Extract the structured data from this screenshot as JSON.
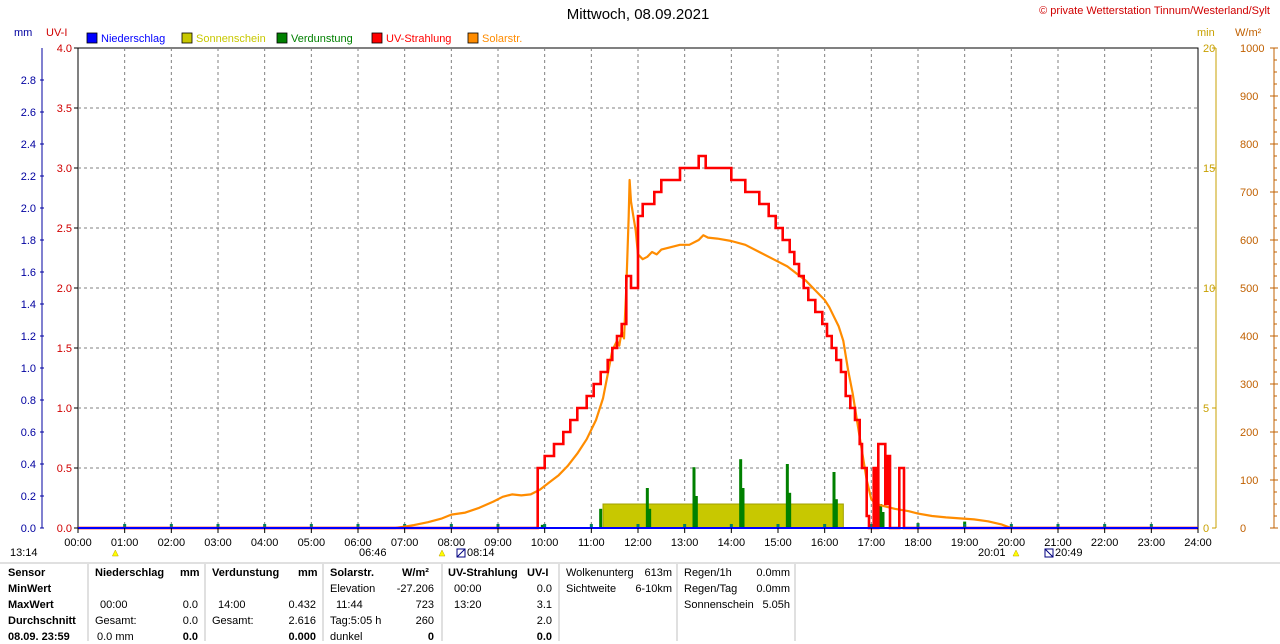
{
  "title": "Mittwoch, 08.09.2021",
  "copyright": "© private Wetterstation Tinnum/Westerland/Sylt",
  "colors": {
    "niederschlag": "#0000ff",
    "sonnenschein": "#c8c800",
    "verdunstung": "#008000",
    "uv": "#ff0000",
    "solar": "#ff8c00",
    "left_axis_mm": "#0000a0",
    "left_axis_uv": "#d00000",
    "right_axis_min": "#c8a000",
    "right_axis_wm2": "#c06000"
  },
  "chart_data": {
    "type": "line",
    "x_unit": "time of day (h)",
    "xlim": [
      0,
      24
    ],
    "x_tick_labels": [
      "00:00",
      "01:00",
      "02:00",
      "03:00",
      "04:00",
      "05:00",
      "06:00",
      "07:00",
      "08:00",
      "09:00",
      "10:00",
      "11:00",
      "12:00",
      "13:00",
      "14:00",
      "15:00",
      "16:00",
      "17:00",
      "18:00",
      "19:00",
      "20:00",
      "21:00",
      "22:00",
      "23:00",
      "24:00"
    ],
    "axes": {
      "mm": {
        "label": "mm",
        "ylim": [
          0,
          3.0
        ],
        "ticks": [
          "0.0",
          "0.2",
          "0.4",
          "0.6",
          "0.8",
          "1.0",
          "1.2",
          "1.4",
          "1.6",
          "1.8",
          "2.0",
          "2.2",
          "2.4",
          "2.6",
          "2.8"
        ]
      },
      "uv": {
        "label": "UV-I",
        "ylim": [
          0,
          4.0
        ],
        "ticks": [
          "0.0",
          "0.5",
          "1.0",
          "1.5",
          "2.0",
          "2.5",
          "3.0",
          "3.5",
          "4.0"
        ]
      },
      "min": {
        "label": "min",
        "ylim": [
          0,
          20
        ],
        "ticks": [
          "0",
          "5",
          "10",
          "15",
          "20"
        ]
      },
      "wm2": {
        "label": "W/m²",
        "ylim": [
          0,
          1000
        ],
        "ticks": [
          "0",
          "100",
          "200",
          "300",
          "400",
          "500",
          "600",
          "700",
          "800",
          "900",
          "1000"
        ]
      }
    },
    "legend": [
      "Niederschlag",
      "Sonnenschein",
      "Verdunstung",
      "UV-Strahlung",
      "Solarstr."
    ],
    "legend_placement": "top-left",
    "grid": true,
    "series": [
      {
        "name": "UV-Strahlung",
        "axis": "uv",
        "step": true,
        "points": [
          [
            0,
            0
          ],
          [
            9.85,
            0
          ],
          [
            9.85,
            0.5
          ],
          [
            10.0,
            0.5
          ],
          [
            10.0,
            0.6
          ],
          [
            10.2,
            0.6
          ],
          [
            10.2,
            0.7
          ],
          [
            10.4,
            0.7
          ],
          [
            10.4,
            0.8
          ],
          [
            10.55,
            0.8
          ],
          [
            10.55,
            0.9
          ],
          [
            10.7,
            0.9
          ],
          [
            10.7,
            1.0
          ],
          [
            10.9,
            1.0
          ],
          [
            10.9,
            1.1
          ],
          [
            11.05,
            1.1
          ],
          [
            11.05,
            1.2
          ],
          [
            11.2,
            1.2
          ],
          [
            11.2,
            1.3
          ],
          [
            11.35,
            1.3
          ],
          [
            11.35,
            1.4
          ],
          [
            11.45,
            1.4
          ],
          [
            11.45,
            1.5
          ],
          [
            11.55,
            1.5
          ],
          [
            11.55,
            1.6
          ],
          [
            11.65,
            1.6
          ],
          [
            11.65,
            1.7
          ],
          [
            11.75,
            1.7
          ],
          [
            11.75,
            2.1
          ],
          [
            11.85,
            2.1
          ],
          [
            11.85,
            2.0
          ],
          [
            12.0,
            2.0
          ],
          [
            12.0,
            2.6
          ],
          [
            12.1,
            2.6
          ],
          [
            12.1,
            2.7
          ],
          [
            12.35,
            2.7
          ],
          [
            12.35,
            2.8
          ],
          [
            12.5,
            2.8
          ],
          [
            12.5,
            2.9
          ],
          [
            12.9,
            2.9
          ],
          [
            12.9,
            3.0
          ],
          [
            13.3,
            3.0
          ],
          [
            13.3,
            3.1
          ],
          [
            13.45,
            3.1
          ],
          [
            13.45,
            3.0
          ],
          [
            14.0,
            3.0
          ],
          [
            14.0,
            2.9
          ],
          [
            14.3,
            2.9
          ],
          [
            14.3,
            2.8
          ],
          [
            14.6,
            2.8
          ],
          [
            14.6,
            2.7
          ],
          [
            14.8,
            2.7
          ],
          [
            14.8,
            2.6
          ],
          [
            14.95,
            2.6
          ],
          [
            14.95,
            2.5
          ],
          [
            15.1,
            2.5
          ],
          [
            15.1,
            2.4
          ],
          [
            15.25,
            2.4
          ],
          [
            15.25,
            2.3
          ],
          [
            15.35,
            2.3
          ],
          [
            15.35,
            2.2
          ],
          [
            15.45,
            2.2
          ],
          [
            15.45,
            2.1
          ],
          [
            15.55,
            2.1
          ],
          [
            15.55,
            2.0
          ],
          [
            15.65,
            2.0
          ],
          [
            15.65,
            1.9
          ],
          [
            15.8,
            1.9
          ],
          [
            15.8,
            1.8
          ],
          [
            15.95,
            1.8
          ],
          [
            15.95,
            1.7
          ],
          [
            16.05,
            1.7
          ],
          [
            16.05,
            1.6
          ],
          [
            16.15,
            1.6
          ],
          [
            16.15,
            1.5
          ],
          [
            16.25,
            1.5
          ],
          [
            16.25,
            1.4
          ],
          [
            16.35,
            1.4
          ],
          [
            16.35,
            1.3
          ],
          [
            16.45,
            1.3
          ],
          [
            16.45,
            1.1
          ],
          [
            16.55,
            1.1
          ],
          [
            16.55,
            1.0
          ],
          [
            16.65,
            1.0
          ],
          [
            16.65,
            0.9
          ],
          [
            16.75,
            0.9
          ],
          [
            16.75,
            0.7
          ],
          [
            16.8,
            0.7
          ],
          [
            16.8,
            0.5
          ],
          [
            16.9,
            0.5
          ],
          [
            16.9,
            0.1
          ],
          [
            16.95,
            0.1
          ],
          [
            16.95,
            0
          ],
          [
            17.05,
            0
          ],
          [
            17.05,
            0.5
          ],
          [
            17.1,
            0.5
          ],
          [
            17.1,
            0
          ],
          [
            17.15,
            0
          ],
          [
            17.15,
            0.7
          ],
          [
            17.3,
            0.7
          ],
          [
            17.3,
            0.2
          ],
          [
            17.35,
            0.2
          ],
          [
            17.35,
            0.6
          ],
          [
            17.4,
            0.6
          ],
          [
            17.4,
            0
          ],
          [
            17.6,
            0
          ],
          [
            17.6,
            0.5
          ],
          [
            17.7,
            0.5
          ],
          [
            17.7,
            0
          ],
          [
            24,
            0
          ]
        ]
      },
      {
        "name": "Solarstr.",
        "axis": "wm2",
        "step": false,
        "points": [
          [
            0,
            0
          ],
          [
            6.8,
            0
          ],
          [
            7.0,
            3
          ],
          [
            7.2,
            6
          ],
          [
            7.5,
            12
          ],
          [
            7.8,
            20
          ],
          [
            8.0,
            28
          ],
          [
            8.3,
            32
          ],
          [
            8.6,
            42
          ],
          [
            8.9,
            55
          ],
          [
            9.1,
            65
          ],
          [
            9.3,
            70
          ],
          [
            9.5,
            68
          ],
          [
            9.7,
            70
          ],
          [
            9.9,
            80
          ],
          [
            10.1,
            95
          ],
          [
            10.3,
            110
          ],
          [
            10.5,
            130
          ],
          [
            10.7,
            155
          ],
          [
            10.9,
            185
          ],
          [
            11.1,
            225
          ],
          [
            11.25,
            270
          ],
          [
            11.35,
            320
          ],
          [
            11.45,
            370
          ],
          [
            11.55,
            390
          ],
          [
            11.6,
            380
          ],
          [
            11.65,
            410
          ],
          [
            11.7,
            395
          ],
          [
            11.75,
            500
          ],
          [
            11.8,
            650
          ],
          [
            11.82,
            725
          ],
          [
            11.85,
            680
          ],
          [
            11.9,
            650
          ],
          [
            11.95,
            620
          ],
          [
            12.0,
            570
          ],
          [
            12.1,
            560
          ],
          [
            12.2,
            565
          ],
          [
            12.3,
            575
          ],
          [
            12.4,
            570
          ],
          [
            12.5,
            580
          ],
          [
            12.7,
            585
          ],
          [
            12.9,
            590
          ],
          [
            13.1,
            590
          ],
          [
            13.3,
            600
          ],
          [
            13.4,
            610
          ],
          [
            13.5,
            605
          ],
          [
            13.7,
            603
          ],
          [
            14.0,
            598
          ],
          [
            14.3,
            590
          ],
          [
            14.6,
            575
          ],
          [
            14.9,
            560
          ],
          [
            15.2,
            545
          ],
          [
            15.4,
            530
          ],
          [
            15.6,
            515
          ],
          [
            15.8,
            495
          ],
          [
            16.0,
            475
          ],
          [
            16.1,
            460
          ],
          [
            16.2,
            440
          ],
          [
            16.3,
            420
          ],
          [
            16.4,
            390
          ],
          [
            16.5,
            330
          ],
          [
            16.6,
            280
          ],
          [
            16.7,
            220
          ],
          [
            16.8,
            160
          ],
          [
            16.9,
            100
          ],
          [
            17.0,
            60
          ],
          [
            17.1,
            50
          ],
          [
            17.3,
            45
          ],
          [
            17.5,
            40
          ],
          [
            17.8,
            35
          ],
          [
            18.0,
            30
          ],
          [
            18.3,
            25
          ],
          [
            18.6,
            22
          ],
          [
            18.9,
            20
          ],
          [
            19.2,
            18
          ],
          [
            19.5,
            14
          ],
          [
            19.8,
            7
          ],
          [
            20.0,
            0
          ],
          [
            24,
            0
          ]
        ]
      },
      {
        "name": "Sonnenschein",
        "axis": "min",
        "type": "bar",
        "from": 11.25,
        "to": 16.4,
        "value": 1
      },
      {
        "name": "Verdunstung",
        "axis": "mm",
        "type": "bar",
        "bars": [
          [
            9.95,
            0.02
          ],
          [
            11.2,
            0.12
          ],
          [
            12.2,
            0.25
          ],
          [
            12.25,
            0.12
          ],
          [
            13.2,
            0.38
          ],
          [
            13.25,
            0.2
          ],
          [
            14.2,
            0.43
          ],
          [
            14.25,
            0.25
          ],
          [
            15.2,
            0.4
          ],
          [
            15.25,
            0.22
          ],
          [
            16.2,
            0.35
          ],
          [
            16.25,
            0.18
          ],
          [
            17.2,
            0.15
          ],
          [
            17.25,
            0.1
          ],
          [
            18.0,
            0.03
          ],
          [
            19.0,
            0.04
          ]
        ]
      }
    ],
    "sun_events": {
      "sunrise_solar": "06:46",
      "sunset_solar": "20:01",
      "sunrise_civil": "08:14",
      "sunset_civil": "20:49",
      "left_marker": "13:14"
    }
  },
  "stats": {
    "row_labels": [
      "Sensor",
      "MinWert",
      "MaxWert",
      "Durchschnitt",
      "08.09. 23:59"
    ],
    "niederschlag": {
      "header": "Niederschlag",
      "unit": "mm",
      "max_time": "00:00",
      "max_value": "0.0",
      "gesamt_label": "Gesamt:",
      "gesamt": "0.0",
      "last_value": "0.0 mm",
      "last_total": "0.0"
    },
    "verdunstung": {
      "header": "Verdunstung",
      "unit": "mm",
      "max_time": "14:00",
      "max_value": "0.432",
      "gesamt_label": "Gesamt:",
      "gesamt": "2.616",
      "last_total": "0.000"
    },
    "solar": {
      "header": "Solarstr.",
      "unit": "W/m²",
      "elev_label": "Elevation",
      "elev_value": "-27.206",
      "max_time": "11:44",
      "max_value": "723",
      "tag_label": "Tag:5:05 h",
      "tag_value": "260",
      "dunkel_label": "dunkel",
      "dunkel_value": "0"
    },
    "uv": {
      "header": "UV-Strahlung",
      "unit": "UV-I",
      "min_time": "00:00",
      "min_value": "0.0",
      "max_time": "13:20",
      "max_value": "3.1",
      "avg_value": "2.0",
      "last_value": "0.0"
    },
    "misc": {
      "wolken_label": "Wolkenunterg",
      "wolken_value": "613m",
      "sicht_label": "Sichtweite",
      "sicht_value": "6-10km"
    },
    "regen": {
      "r1_label": "Regen/1h",
      "r1_value": "0.0mm",
      "rt_label": "Regen/Tag",
      "rt_value": "0.0mm",
      "sonne_label": "Sonnenschein",
      "sonne_value": "5.05h"
    }
  }
}
